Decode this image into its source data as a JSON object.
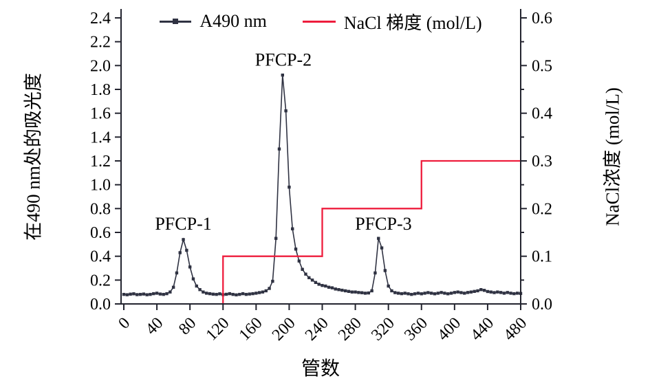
{
  "figure": {
    "background": "#ffffff"
  },
  "chart_data": {
    "type": "line",
    "title": "",
    "xlabel": "管数",
    "ylabel_left": "在490 nm处的吸光度",
    "ylabel_right": "NaCl浓度 (mol/L)",
    "xlim": [
      0,
      480
    ],
    "x_ticks": [
      0,
      40,
      80,
      120,
      160,
      200,
      240,
      280,
      320,
      360,
      400,
      440,
      480
    ],
    "x_tick_rotation_deg": -45,
    "ylim_left": [
      0,
      2.4
    ],
    "yticks_left": [
      "0.0",
      "0.2",
      "0.4",
      "0.6",
      "0.8",
      "1.0",
      "1.2",
      "1.4",
      "1.6",
      "1.8",
      "2.0",
      "2.2",
      "2.4"
    ],
    "ylim_right": [
      0,
      0.6
    ],
    "yticks_right": [
      "0.0",
      "0.1",
      "0.2",
      "0.3",
      "0.4",
      "0.5",
      "0.6"
    ],
    "yticks_right_minor": [
      0.05,
      0.15,
      0.25,
      0.35,
      0.45,
      0.55
    ],
    "grid": false,
    "legend_position": "top-outside",
    "axis_color": "#23242f",
    "series": [
      {
        "name": "A490 nm",
        "axis": "left",
        "color": "#2f3242",
        "marker": "square",
        "points": [
          [
            0,
            0.08
          ],
          [
            4,
            0.077
          ],
          [
            8,
            0.082
          ],
          [
            12,
            0.085
          ],
          [
            16,
            0.078
          ],
          [
            20,
            0.08
          ],
          [
            24,
            0.083
          ],
          [
            28,
            0.077
          ],
          [
            32,
            0.08
          ],
          [
            36,
            0.086
          ],
          [
            40,
            0.09
          ],
          [
            44,
            0.083
          ],
          [
            48,
            0.08
          ],
          [
            52,
            0.086
          ],
          [
            56,
            0.1
          ],
          [
            60,
            0.14
          ],
          [
            64,
            0.26
          ],
          [
            68,
            0.43
          ],
          [
            72,
            0.54
          ],
          [
            76,
            0.45
          ],
          [
            80,
            0.31
          ],
          [
            84,
            0.21
          ],
          [
            88,
            0.15
          ],
          [
            92,
            0.12
          ],
          [
            96,
            0.1
          ],
          [
            100,
            0.09
          ],
          [
            104,
            0.086
          ],
          [
            108,
            0.082
          ],
          [
            112,
            0.08
          ],
          [
            116,
            0.085
          ],
          [
            120,
            0.078
          ],
          [
            124,
            0.081
          ],
          [
            128,
            0.086
          ],
          [
            132,
            0.08
          ],
          [
            136,
            0.076
          ],
          [
            140,
            0.08
          ],
          [
            144,
            0.086
          ],
          [
            148,
            0.08
          ],
          [
            152,
            0.083
          ],
          [
            156,
            0.086
          ],
          [
            160,
            0.09
          ],
          [
            164,
            0.095
          ],
          [
            168,
            0.1
          ],
          [
            172,
            0.11
          ],
          [
            176,
            0.13
          ],
          [
            180,
            0.19
          ],
          [
            184,
            0.55
          ],
          [
            188,
            1.3
          ],
          [
            192,
            1.92
          ],
          [
            196,
            1.62
          ],
          [
            200,
            0.98
          ],
          [
            204,
            0.63
          ],
          [
            208,
            0.46
          ],
          [
            212,
            0.36
          ],
          [
            216,
            0.29
          ],
          [
            220,
            0.25
          ],
          [
            224,
            0.22
          ],
          [
            228,
            0.2
          ],
          [
            232,
            0.18
          ],
          [
            236,
            0.165
          ],
          [
            240,
            0.155
          ],
          [
            244,
            0.15
          ],
          [
            248,
            0.14
          ],
          [
            252,
            0.135
          ],
          [
            256,
            0.125
          ],
          [
            260,
            0.12
          ],
          [
            264,
            0.115
          ],
          [
            268,
            0.11
          ],
          [
            272,
            0.105
          ],
          [
            276,
            0.1
          ],
          [
            280,
            0.1
          ],
          [
            284,
            0.096
          ],
          [
            288,
            0.094
          ],
          [
            292,
            0.09
          ],
          [
            296,
            0.092
          ],
          [
            300,
            0.11
          ],
          [
            304,
            0.26
          ],
          [
            308,
            0.55
          ],
          [
            312,
            0.47
          ],
          [
            316,
            0.28
          ],
          [
            320,
            0.15
          ],
          [
            324,
            0.11
          ],
          [
            328,
            0.095
          ],
          [
            332,
            0.09
          ],
          [
            336,
            0.086
          ],
          [
            340,
            0.09
          ],
          [
            344,
            0.085
          ],
          [
            348,
            0.08
          ],
          [
            352,
            0.085
          ],
          [
            356,
            0.09
          ],
          [
            360,
            0.085
          ],
          [
            364,
            0.09
          ],
          [
            368,
            0.095
          ],
          [
            372,
            0.09
          ],
          [
            376,
            0.085
          ],
          [
            380,
            0.09
          ],
          [
            384,
            0.096
          ],
          [
            388,
            0.09
          ],
          [
            392,
            0.085
          ],
          [
            396,
            0.09
          ],
          [
            400,
            0.096
          ],
          [
            404,
            0.1
          ],
          [
            408,
            0.095
          ],
          [
            412,
            0.09
          ],
          [
            416,
            0.096
          ],
          [
            420,
            0.1
          ],
          [
            424,
            0.105
          ],
          [
            428,
            0.11
          ],
          [
            432,
            0.12
          ],
          [
            436,
            0.114
          ],
          [
            440,
            0.104
          ],
          [
            444,
            0.1
          ],
          [
            448,
            0.095
          ],
          [
            452,
            0.1
          ],
          [
            456,
            0.096
          ],
          [
            460,
            0.09
          ],
          [
            464,
            0.096
          ],
          [
            468,
            0.09
          ],
          [
            472,
            0.086
          ],
          [
            476,
            0.09
          ],
          [
            480,
            0.088
          ]
        ]
      },
      {
        "name": "NaCl 梯度 (mol/L)",
        "axis": "right",
        "color": "#ee1c3c",
        "marker": "none",
        "points": [
          [
            120,
            0
          ],
          [
            120,
            0.1
          ],
          [
            240,
            0.1
          ],
          [
            240,
            0.2
          ],
          [
            360,
            0.2
          ],
          [
            360,
            0.3
          ],
          [
            480,
            0.3
          ]
        ]
      }
    ],
    "annotations": [
      {
        "text": "PFCP-1",
        "x": 72,
        "y": 0.675
      },
      {
        "text": "PFCP-2",
        "x": 193,
        "y": 2.05
      },
      {
        "text": "PFCP-3",
        "x": 314,
        "y": 0.675
      }
    ]
  }
}
